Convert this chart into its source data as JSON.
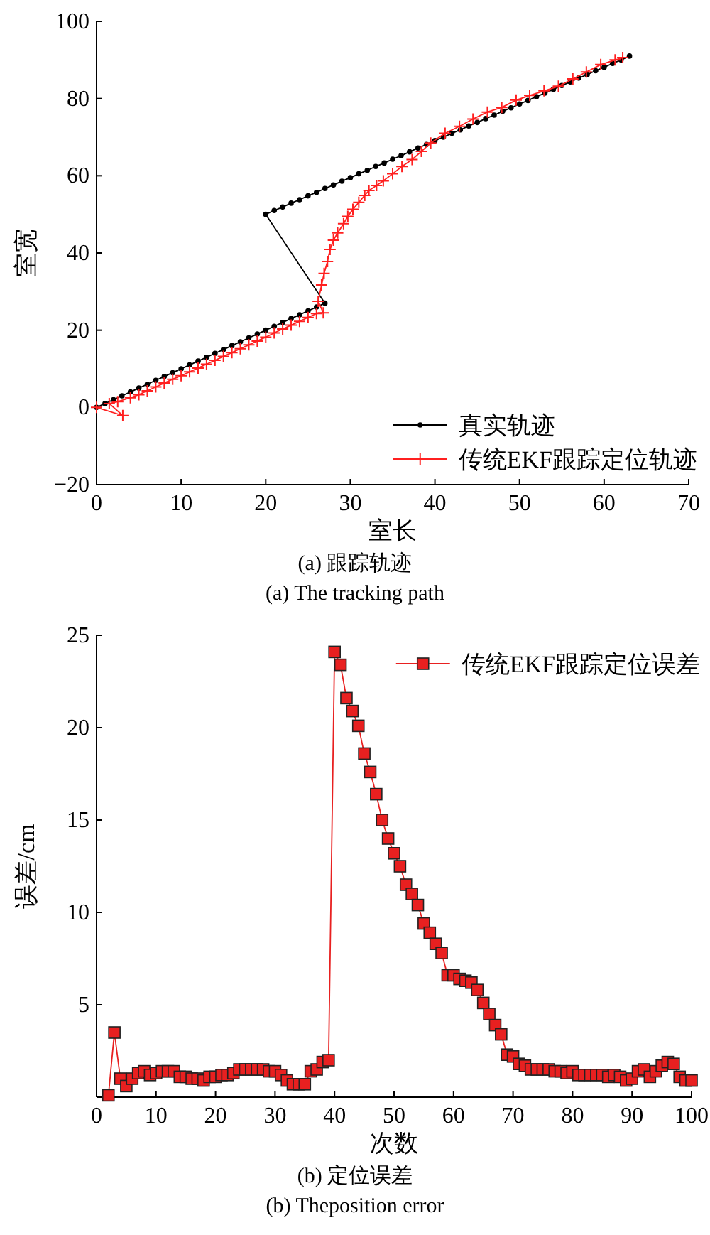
{
  "chart_data": [
    {
      "type": "line",
      "title": "(a) 跟踪轨迹",
      "subtitle": "(a) The tracking path",
      "xlabel": "室长",
      "ylabel": "室宽",
      "xlim": [
        0,
        70
      ],
      "ylim": [
        -20,
        100
      ],
      "xticks": [
        0,
        10,
        20,
        30,
        40,
        50,
        60,
        70
      ],
      "yticks": [
        {
          "value": -20,
          "label": "−20"
        },
        0,
        20,
        40,
        60,
        80,
        100
      ],
      "legend": "bottom right",
      "series": [
        {
          "name": "真实轨迹",
          "color": "#000000",
          "marker": "circle",
          "x": [
            0,
            1,
            2,
            3,
            4,
            5,
            6,
            7,
            8,
            9,
            10,
            11,
            12,
            13,
            14,
            15,
            16,
            17,
            18,
            19,
            20,
            21,
            22,
            23,
            24,
            25,
            26,
            27,
            20,
            21,
            22,
            23,
            24,
            25,
            26,
            27,
            28,
            29,
            30,
            31,
            32,
            33,
            34,
            35,
            36,
            37,
            38,
            39,
            40,
            41,
            42,
            43,
            44,
            45,
            46,
            47,
            48,
            49,
            50,
            51,
            52,
            53,
            54,
            55,
            56,
            57,
            58,
            59,
            60,
            61,
            62,
            63
          ],
          "values": [
            0,
            1,
            2,
            3,
            4,
            5,
            6,
            7,
            8,
            9,
            10,
            11,
            12,
            13,
            14,
            15,
            16,
            17,
            18,
            19,
            20,
            21,
            22,
            23,
            24,
            25,
            26,
            27,
            50,
            51.0,
            51.9,
            52.9,
            53.8,
            54.8,
            55.7,
            56.7,
            57.6,
            58.6,
            59.5,
            60.5,
            61.4,
            62.4,
            63.3,
            64.3,
            65.2,
            66.2,
            67.2,
            68.1,
            69.1,
            70.0,
            71.0,
            71.9,
            72.9,
            73.8,
            74.8,
            75.7,
            76.7,
            77.6,
            78.6,
            79.5,
            80.5,
            81.4,
            82.4,
            83.4,
            84.3,
            85.3,
            86.2,
            87.2,
            88.1,
            89.1,
            90.0,
            91.0
          ]
        },
        {
          "name": "传统EKF跟踪定位轨迹",
          "color": "#ff2020",
          "marker": "cross",
          "x": [
            0,
            3.1,
            1.5,
            2.5,
            4,
            5,
            6,
            7,
            8,
            9,
            10,
            11,
            12,
            13,
            14,
            15,
            16,
            17,
            18,
            19,
            20,
            21,
            22,
            23,
            24,
            25,
            26,
            26.8,
            26.2,
            26.6,
            26.9,
            27.3,
            27.6,
            28.0,
            28.5,
            29.2,
            29.7,
            30.3,
            31.0,
            31.7,
            32.2,
            33.1,
            33.9,
            35.0,
            36.1,
            37.3,
            38.4,
            39.5,
            41.2,
            42.9,
            44.5,
            46.2,
            47.9,
            49.6,
            51.2,
            52.9,
            54.6,
            56.3,
            57.9,
            59.6,
            61.3,
            62.2
          ],
          "values": [
            0,
            -2.1,
            1,
            1.5,
            2.5,
            3.3,
            4.3,
            5.3,
            6.3,
            7.3,
            8.2,
            9.2,
            10.2,
            11.2,
            12.2,
            13.2,
            14.2,
            15.2,
            16.2,
            17.2,
            18.2,
            19.3,
            20.3,
            21.3,
            22.3,
            23.3,
            24.3,
            24.5,
            27.5,
            31.7,
            34.7,
            37.8,
            40.9,
            43.3,
            45.2,
            47.6,
            49.5,
            51.3,
            53.1,
            54.9,
            56.2,
            57.5,
            58.7,
            60.5,
            62.4,
            64.2,
            66.3,
            68.5,
            71.0,
            72.8,
            74.7,
            76.5,
            77.7,
            79.6,
            80.8,
            82.0,
            83.2,
            85.1,
            86.9,
            88.8,
            90.0,
            90.6
          ]
        }
      ]
    },
    {
      "type": "line",
      "title": "(b) 定位误差",
      "subtitle": "(b) Theposition error",
      "xlabel": "次数",
      "ylabel": "误差/cm",
      "xlim": [
        0,
        100
      ],
      "ylim": [
        0,
        25
      ],
      "xticks": [
        0,
        10,
        20,
        30,
        40,
        50,
        60,
        70,
        80,
        90,
        100
      ],
      "yticks": [
        5,
        10,
        15,
        20,
        25
      ],
      "legend": "top right",
      "series": [
        {
          "name": "传统EKF跟踪定位误差",
          "color": "#e82020",
          "marker": "square",
          "x": [
            2,
            3,
            4,
            5,
            6,
            7,
            8,
            9,
            10,
            11,
            12,
            13,
            14,
            15,
            16,
            17,
            18,
            19,
            20,
            21,
            22,
            23,
            24,
            25,
            26,
            27,
            28,
            29,
            30,
            31,
            32,
            33,
            34,
            35,
            36,
            37,
            38,
            39,
            40,
            41,
            42,
            43,
            44,
            45,
            46,
            47,
            48,
            49,
            50,
            51,
            52,
            53,
            54,
            55,
            56,
            57,
            58,
            59,
            60,
            61,
            62,
            63,
            64,
            65,
            66,
            67,
            68,
            69,
            70,
            71,
            72,
            73,
            74,
            75,
            76,
            77,
            78,
            79,
            80,
            81,
            82,
            83,
            84,
            85,
            86,
            87,
            88,
            89,
            90,
            91,
            92,
            93,
            94,
            95,
            96,
            97,
            98,
            99,
            100
          ],
          "values": [
            0.1,
            3.5,
            1.0,
            0.6,
            1.0,
            1.3,
            1.4,
            1.2,
            1.3,
            1.4,
            1.4,
            1.4,
            1.1,
            1.1,
            1.0,
            1.0,
            0.9,
            1.1,
            1.1,
            1.2,
            1.2,
            1.3,
            1.5,
            1.5,
            1.5,
            1.5,
            1.5,
            1.4,
            1.4,
            1.2,
            0.9,
            0.7,
            0.7,
            0.7,
            1.4,
            1.5,
            1.9,
            2.0,
            24.1,
            23.4,
            21.6,
            20.9,
            20.1,
            18.6,
            17.6,
            16.4,
            15.0,
            14.0,
            13.2,
            12.5,
            11.5,
            11.0,
            10.4,
            9.4,
            8.9,
            8.3,
            7.8,
            6.6,
            6.6,
            6.4,
            6.3,
            6.2,
            5.8,
            5.1,
            4.5,
            3.9,
            3.4,
            2.3,
            2.2,
            1.8,
            1.7,
            1.5,
            1.5,
            1.5,
            1.5,
            1.4,
            1.4,
            1.3,
            1.4,
            1.2,
            1.2,
            1.2,
            1.2,
            1.2,
            1.1,
            1.2,
            1.1,
            0.9,
            1.0,
            1.4,
            1.5,
            1.1,
            1.4,
            1.7,
            1.9,
            1.8,
            1.1,
            0.9,
            0.9
          ]
        }
      ]
    }
  ]
}
